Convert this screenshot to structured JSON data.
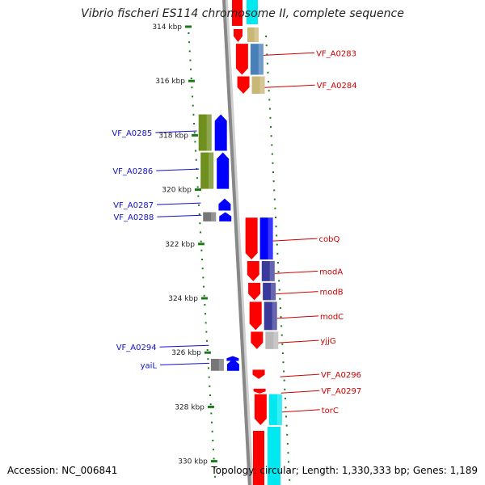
{
  "title": "Vibrio fischeri ES114 chromosome II, complete sequence",
  "footer": {
    "accession": "Accession: NC_006841",
    "topology": "Topology: circular; Length: 1,330,333 bp; Genes: 1,189"
  },
  "ruler": {
    "ticks": [
      {
        "kbp": 314,
        "label": "314 kbp"
      },
      {
        "kbp": 316,
        "label": "316 kbp"
      },
      {
        "kbp": 318,
        "label": "318 kbp"
      },
      {
        "kbp": 320,
        "label": "320 kbp"
      },
      {
        "kbp": 322,
        "label": "322 kbp"
      },
      {
        "kbp": 324,
        "label": "324 kbp"
      },
      {
        "kbp": 326,
        "label": "326 kbp"
      },
      {
        "kbp": 328,
        "label": "328 kbp"
      },
      {
        "kbp": 330,
        "label": "330 kbp"
      }
    ]
  },
  "genes": {
    "reverse": [
      {
        "label": "VF_A0283",
        "start": 314.6,
        "end": 315.8
      },
      {
        "label": "VF_A0284",
        "start": 315.8,
        "end": 316.5
      },
      {
        "label": "cobQ",
        "start": 321.0,
        "end": 322.6
      },
      {
        "label": "modA",
        "start": 322.6,
        "end": 323.4
      },
      {
        "label": "modB",
        "start": 323.4,
        "end": 324.1
      },
      {
        "label": "modC",
        "start": 324.1,
        "end": 325.2
      },
      {
        "label": "yjjG",
        "start": 325.2,
        "end": 325.9
      },
      {
        "label": "VF_A0296",
        "start": 326.6,
        "end": 327.0
      },
      {
        "label": "VF_A0297",
        "start": 327.3,
        "end": 327.5
      },
      {
        "label": "torC",
        "start": 327.5,
        "end": 328.7
      }
    ],
    "forward": [
      {
        "label": "VF_A0285",
        "start": 317.2,
        "end": 318.6
      },
      {
        "label": "VF_A0286",
        "start": 318.6,
        "end": 320.0
      },
      {
        "label": "VF_A0287",
        "start": 320.3,
        "end": 320.8
      },
      {
        "label": "VF_A0288",
        "start": 320.8,
        "end": 321.2
      },
      {
        "label": "VF_A0294",
        "start": 326.1,
        "end": 326.2
      },
      {
        "label": "yaiL",
        "start": 326.2,
        "end": 326.7
      }
    ]
  },
  "colors": {
    "forward_label": "#1010c8",
    "reverse_label": "#d00000",
    "ruler_tick": "#1a7a1a",
    "backbone": "#888888",
    "cds_forward": "#0000ff",
    "cds_reverse": "#ff0000",
    "track_olive": "#6f8f1e",
    "track_steel": "#4a80b8",
    "track_tan": "#c8b878",
    "track_navy": "#3a3a9a",
    "track_cyan": "#00e8f0",
    "track_grey": "#777777"
  }
}
